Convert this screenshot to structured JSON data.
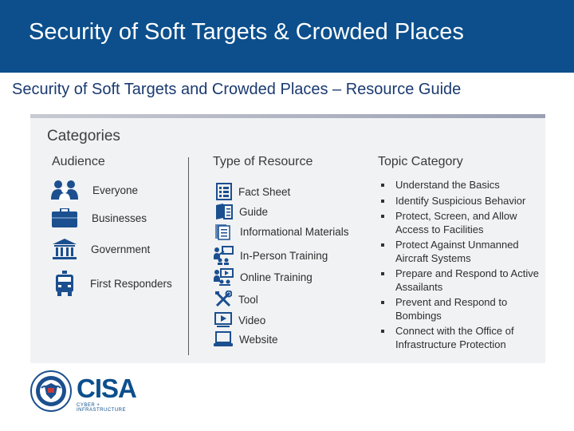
{
  "header": {
    "title": "Security of Soft Targets & Crowded Places"
  },
  "subtitle": "Security of Soft Targets and Crowded Places – Resource Guide",
  "categories": {
    "heading": "Categories",
    "audience": {
      "header": "Audience",
      "items": [
        {
          "label": "Everyone",
          "icon": "people-icon"
        },
        {
          "label": "Businesses",
          "icon": "briefcase-icon"
        },
        {
          "label": "Government",
          "icon": "capitol-building-icon"
        },
        {
          "label": "First Responders",
          "icon": "firetruck-icon"
        }
      ]
    },
    "resources": {
      "header": "Type of Resource",
      "items": [
        {
          "label": "Fact Sheet",
          "icon": "fact-sheet-icon"
        },
        {
          "label": "Guide",
          "icon": "guide-book-icon"
        },
        {
          "label": "Informational Materials",
          "icon": "documents-icon"
        },
        {
          "label": "In-Person Training",
          "icon": "classroom-icon"
        },
        {
          "label": "Online Training",
          "icon": "online-training-icon"
        },
        {
          "label": "Tool",
          "icon": "tools-icon"
        },
        {
          "label": "Video",
          "icon": "video-icon"
        },
        {
          "label": "Website",
          "icon": "laptop-icon"
        }
      ]
    },
    "topics": {
      "header": "Topic Category",
      "items": [
        "Understand the Basics",
        "Identify Suspicious Behavior",
        "Protect, Screen, and Allow Access to Facilities",
        "Protect Against Unmanned Aircraft Systems",
        "Prepare and Respond to Active Assailants",
        "Prevent and Respond to Bombings",
        "Connect with the Office of Infrastructure Protection"
      ]
    }
  },
  "logo": {
    "name": "CISA",
    "tagline": "CYBER + INFRASTRUCTURE"
  },
  "colors": {
    "brand": "#0c4f8c",
    "icon": "#1b4f8f",
    "card": "#f1f2f4"
  }
}
